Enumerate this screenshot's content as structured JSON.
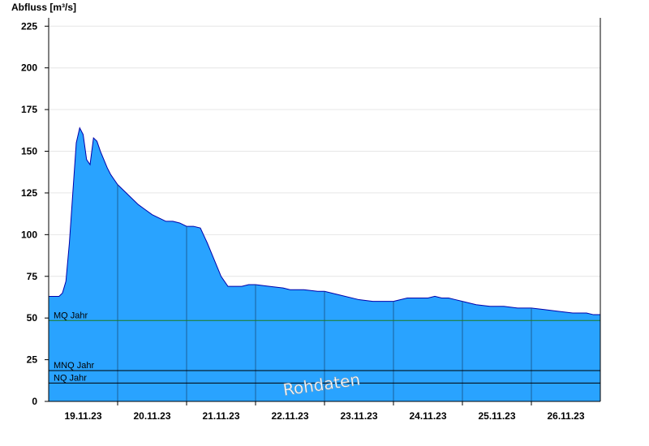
{
  "chart_data": {
    "type": "area",
    "title": "",
    "ylabel": "Abfluss [m³/s]",
    "xlabel": "",
    "xlim": [
      0,
      8
    ],
    "ylim": [
      0,
      230
    ],
    "yticks": [
      0,
      25,
      50,
      75,
      100,
      125,
      150,
      175,
      200,
      225
    ],
    "xtick_labels": [
      "19.11.23",
      "20.11.23",
      "21.11.23",
      "22.11.23",
      "23.11.23",
      "24.11.23",
      "25.11.23",
      "26.11.23"
    ],
    "grid": true,
    "series": [
      {
        "x": [
          0.0,
          0.15,
          0.2,
          0.25,
          0.3,
          0.35,
          0.4,
          0.45,
          0.5,
          0.55,
          0.6,
          0.65,
          0.7,
          0.75,
          0.8,
          0.85,
          0.9,
          0.95,
          1.0,
          1.05,
          1.1,
          1.2,
          1.3,
          1.4,
          1.5,
          1.6,
          1.7,
          1.8,
          1.9,
          2.0,
          2.1,
          2.2,
          2.3,
          2.4,
          2.5,
          2.6,
          2.7,
          2.8,
          2.9,
          3.0,
          3.2,
          3.4,
          3.5,
          3.7,
          3.9,
          4.0,
          4.2,
          4.5,
          4.7,
          5.0,
          5.2,
          5.5,
          5.6,
          5.7,
          5.8,
          5.9,
          6.0,
          6.2,
          6.4,
          6.6,
          6.8,
          7.0,
          7.2,
          7.4,
          7.6,
          7.8,
          7.9,
          8.0
        ],
        "values": [
          63,
          63,
          65,
          72,
          95,
          125,
          155,
          164,
          160,
          145,
          142,
          158,
          156,
          150,
          145,
          140,
          136,
          133,
          130,
          128,
          126,
          122,
          118,
          115,
          112,
          110,
          108,
          108,
          107,
          105,
          105,
          104,
          95,
          85,
          75,
          69,
          69,
          69,
          70,
          70,
          69,
          68,
          67,
          67,
          66,
          66,
          64,
          61,
          60,
          60,
          62,
          62,
          63,
          62,
          62,
          61,
          60,
          58,
          57,
          57,
          56,
          56,
          55,
          54,
          53,
          53,
          52,
          52
        ]
      }
    ],
    "reference_lines": [
      {
        "label": "MQ Jahr",
        "value": 48.5,
        "color": "#1f7a1f"
      },
      {
        "label": "MNQ Jahr",
        "value": 18.5,
        "color": "#000000"
      },
      {
        "label": "NQ Jahr",
        "value": 11,
        "color": "#000000"
      }
    ],
    "colors": {
      "fill": "#29a3ff",
      "line": "#0000aa",
      "grid": "#e6e6e6"
    },
    "annotation": "Rohdaten"
  }
}
